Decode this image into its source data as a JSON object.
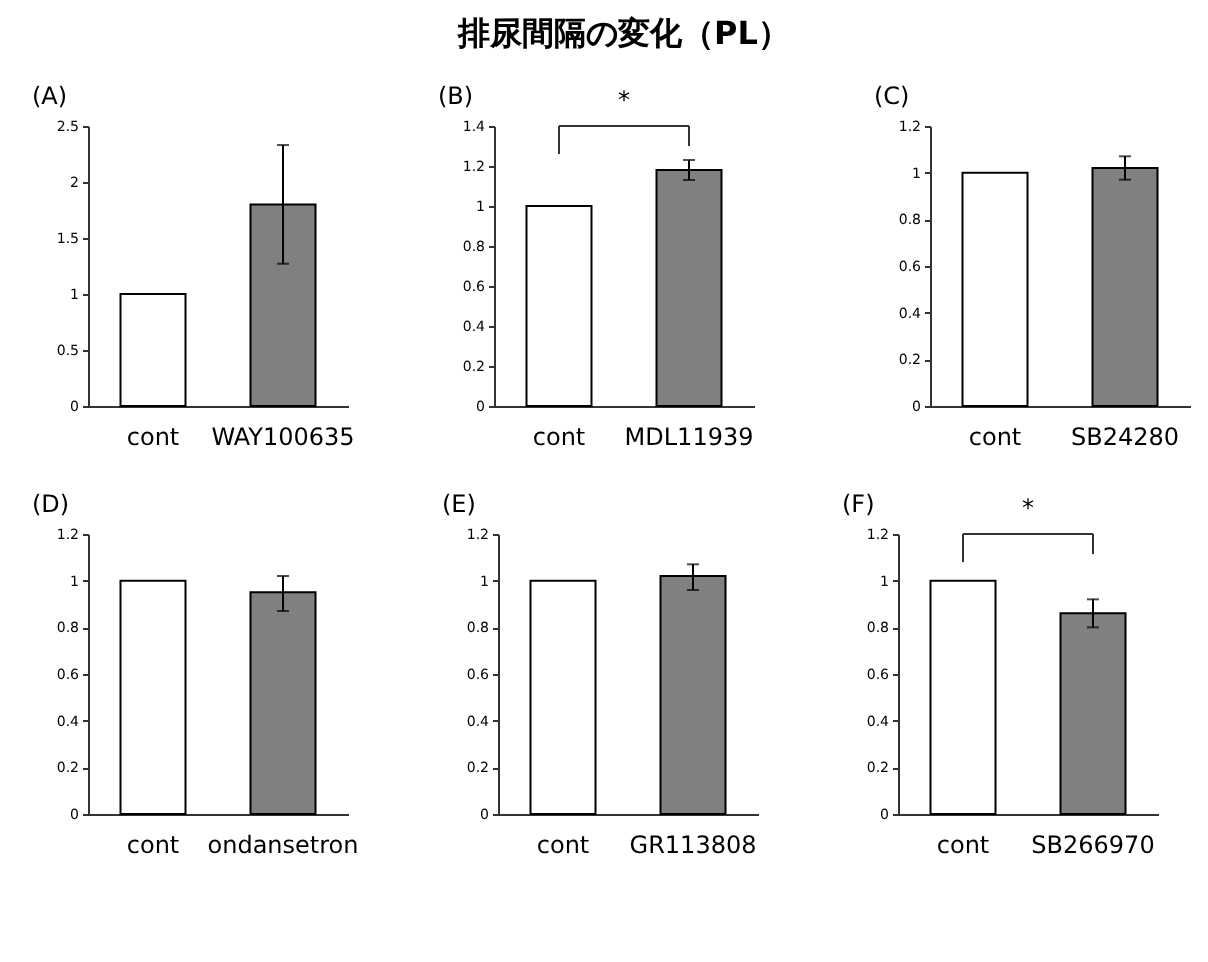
{
  "chart_data": [
    {
      "type": "bar",
      "subtitle": "(A)",
      "categories": [
        "cont",
        "WAY100635"
      ],
      "values": [
        1,
        1.8
      ],
      "colors": [
        "#ffffff",
        "#808080"
      ],
      "errors": [
        null,
        [
          1.27,
          2.33
        ]
      ],
      "ylim": [
        0,
        2.5
      ],
      "yticks": [
        0,
        0.5,
        1,
        1.5,
        2,
        2.5
      ],
      "grid": false,
      "legend": false
    },
    {
      "type": "bar",
      "title": "排尿間隔の変化（PL）",
      "subtitle": "(B)",
      "categories": [
        "cont",
        "MDL11939"
      ],
      "values": [
        1,
        1.18
      ],
      "colors": [
        "#ffffff",
        "#808080"
      ],
      "errors": [
        null,
        [
          1.13,
          1.23
        ]
      ],
      "ylim": [
        0,
        1.4
      ],
      "yticks": [
        0,
        0.2,
        0.4,
        0.6,
        0.8,
        1,
        1.2,
        1.4
      ],
      "annotations": [
        "*"
      ],
      "grid": false,
      "legend": false
    },
    {
      "type": "bar",
      "subtitle": "(C)",
      "categories": [
        "cont",
        "SB24280"
      ],
      "values": [
        1,
        1.02
      ],
      "colors": [
        "#ffffff",
        "#808080"
      ],
      "errors": [
        null,
        [
          0.97,
          1.07
        ]
      ],
      "ylim": [
        0,
        1.2
      ],
      "yticks": [
        0,
        0.2,
        0.4,
        0.6,
        0.8,
        1,
        1.2
      ],
      "grid": false,
      "legend": false
    },
    {
      "type": "bar",
      "subtitle": "(D)",
      "categories": [
        "cont",
        "ondansetron"
      ],
      "values": [
        1,
        0.95
      ],
      "colors": [
        "#ffffff",
        "#808080"
      ],
      "errors": [
        null,
        [
          0.87,
          1.02
        ]
      ],
      "ylim": [
        0,
        1.2
      ],
      "yticks": [
        0,
        0.2,
        0.4,
        0.6,
        0.8,
        1,
        1.2
      ],
      "grid": false,
      "legend": false
    },
    {
      "type": "bar",
      "subtitle": "(E)",
      "categories": [
        "cont",
        "GR113808"
      ],
      "values": [
        1,
        1.02
      ],
      "colors": [
        "#ffffff",
        "#808080"
      ],
      "errors": [
        null,
        [
          0.96,
          1.07
        ]
      ],
      "ylim": [
        0,
        1.2
      ],
      "yticks": [
        0,
        0.2,
        0.4,
        0.6,
        0.8,
        1,
        1.2
      ],
      "grid": false,
      "legend": false
    },
    {
      "type": "bar",
      "subtitle": "(F)",
      "categories": [
        "cont",
        "SB266970"
      ],
      "values": [
        1,
        0.86
      ],
      "colors": [
        "#ffffff",
        "#808080"
      ],
      "errors": [
        null,
        [
          0.8,
          0.92
        ]
      ],
      "ylim": [
        0,
        1.2
      ],
      "yticks": [
        0,
        0.2,
        0.4,
        0.6,
        0.8,
        1,
        1.2
      ],
      "annotations": [
        "*"
      ],
      "grid": false,
      "legend": false
    }
  ]
}
